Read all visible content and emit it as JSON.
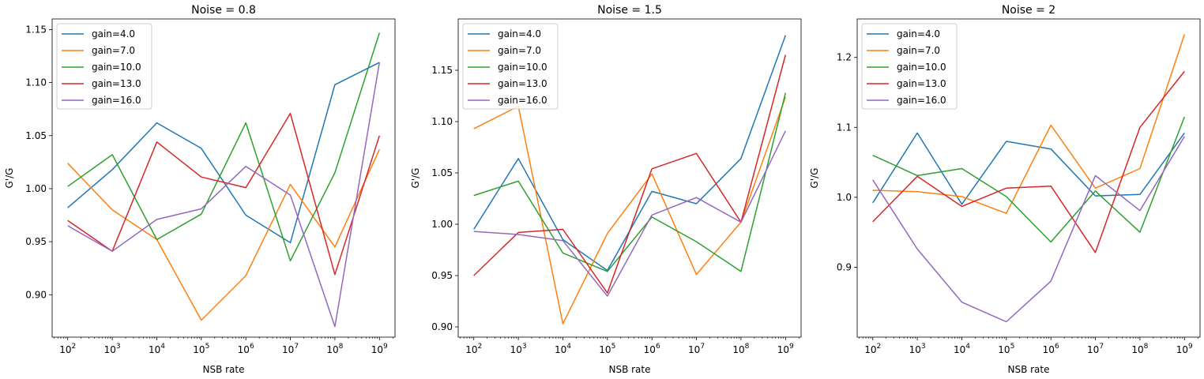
{
  "chart_data": [
    {
      "type": "line",
      "title": "Noise = 0.8",
      "xlabel": "NSB rate",
      "ylabel": "G'/G",
      "xscale": "log",
      "x": [
        100,
        1000,
        10000,
        100000,
        1000000,
        10000000,
        100000000,
        1000000000
      ],
      "xticks": [
        "10^2",
        "10^3",
        "10^4",
        "10^5",
        "10^6",
        "10^7",
        "10^8",
        "10^9"
      ],
      "ylim": [
        0.86,
        1.16
      ],
      "yticks": [
        0.9,
        0.95,
        1.0,
        1.05,
        1.1,
        1.15
      ],
      "ytick_labels": [
        "0.90",
        "0.95",
        "1.00",
        "1.05",
        "1.10",
        "1.15"
      ],
      "legend": "top-left",
      "series": [
        {
          "name": "gain=4.0",
          "color": "#1f77b4",
          "values": [
            0.982,
            1.018,
            1.062,
            1.038,
            0.975,
            0.949,
            1.098,
            1.119
          ]
        },
        {
          "name": "gain=7.0",
          "color": "#ff7f0e",
          "values": [
            1.024,
            0.98,
            0.952,
            0.876,
            0.918,
            1.004,
            0.945,
            1.037
          ]
        },
        {
          "name": "gain=10.0",
          "color": "#2ca02c",
          "values": [
            1.002,
            1.032,
            0.952,
            0.976,
            1.062,
            0.932,
            1.015,
            1.147
          ]
        },
        {
          "name": "gain=13.0",
          "color": "#d62728",
          "values": [
            0.97,
            0.941,
            1.044,
            1.011,
            1.001,
            1.071,
            0.919,
            1.05
          ]
        },
        {
          "name": "gain=16.0",
          "color": "#9467bd",
          "values": [
            0.965,
            0.941,
            0.971,
            0.981,
            1.021,
            0.994,
            0.87,
            1.119
          ]
        }
      ]
    },
    {
      "type": "line",
      "title": "Noise = 1.5",
      "xlabel": "NSB rate",
      "ylabel": "G'/G",
      "xscale": "log",
      "x": [
        100,
        1000,
        10000,
        100000,
        1000000,
        10000000,
        100000000,
        1000000000
      ],
      "xticks": [
        "10^2",
        "10^3",
        "10^4",
        "10^5",
        "10^6",
        "10^7",
        "10^8",
        "10^9"
      ],
      "ylim": [
        0.89,
        1.2
      ],
      "yticks": [
        0.9,
        0.95,
        1.0,
        1.05,
        1.1,
        1.15
      ],
      "ytick_labels": [
        "0.90",
        "0.95",
        "1.00",
        "1.05",
        "1.10",
        "1.15"
      ],
      "legend": "top-left",
      "series": [
        {
          "name": "gain=4.0",
          "color": "#1f77b4",
          "values": [
            0.995,
            1.064,
            0.985,
            0.955,
            1.032,
            1.02,
            1.064,
            1.184
          ]
        },
        {
          "name": "gain=7.0",
          "color": "#ff7f0e",
          "values": [
            1.093,
            1.115,
            0.903,
            0.991,
            1.049,
            0.951,
            1.002,
            1.124
          ]
        },
        {
          "name": "gain=10.0",
          "color": "#2ca02c",
          "values": [
            1.028,
            1.042,
            0.972,
            0.954,
            1.007,
            0.983,
            0.954,
            1.128
          ]
        },
        {
          "name": "gain=13.0",
          "color": "#d62728",
          "values": [
            0.95,
            0.992,
            0.995,
            0.933,
            1.054,
            1.069,
            1.002,
            1.165
          ]
        },
        {
          "name": "gain=16.0",
          "color": "#9467bd",
          "values": [
            0.993,
            0.99,
            0.984,
            0.93,
            1.009,
            1.026,
            1.002,
            1.091
          ]
        }
      ]
    },
    {
      "type": "line",
      "title": "Noise = 2",
      "xlabel": "NSB rate",
      "ylabel": "G'/G",
      "xscale": "log",
      "x": [
        100,
        1000,
        10000,
        100000,
        1000000,
        10000000,
        100000000,
        1000000000
      ],
      "xticks": [
        "10^2",
        "10^3",
        "10^4",
        "10^5",
        "10^6",
        "10^7",
        "10^8",
        "10^9"
      ],
      "ylim": [
        0.8,
        1.255
      ],
      "yticks": [
        0.9,
        1.0,
        1.1,
        1.2
      ],
      "ytick_labels": [
        "0.9",
        "1.0",
        "1.1",
        "1.2"
      ],
      "legend": "top-left",
      "series": [
        {
          "name": "gain=4.0",
          "color": "#1f77b4",
          "values": [
            0.992,
            1.092,
            0.99,
            1.08,
            1.069,
            1.002,
            1.004,
            1.092
          ]
        },
        {
          "name": "gain=7.0",
          "color": "#ff7f0e",
          "values": [
            1.01,
            1.008,
            1.001,
            0.977,
            1.103,
            1.013,
            1.041,
            1.233
          ]
        },
        {
          "name": "gain=10.0",
          "color": "#2ca02c",
          "values": [
            1.06,
            1.031,
            1.041,
            1.001,
            0.936,
            1.009,
            0.95,
            1.115
          ]
        },
        {
          "name": "gain=13.0",
          "color": "#d62728",
          "values": [
            0.965,
            1.03,
            0.987,
            1.013,
            1.016,
            0.921,
            1.1,
            1.18
          ]
        },
        {
          "name": "gain=16.0",
          "color": "#9467bd",
          "values": [
            1.025,
            0.926,
            0.85,
            0.822,
            0.88,
            1.031,
            0.981,
            1.087
          ]
        }
      ]
    }
  ]
}
